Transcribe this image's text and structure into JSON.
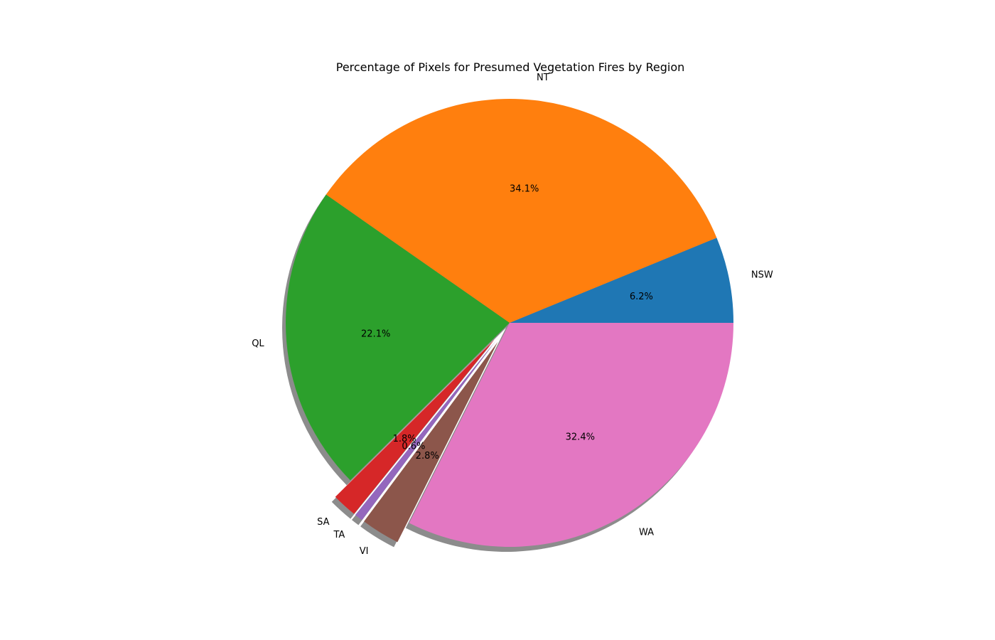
{
  "chart_data": {
    "type": "pie",
    "title": "Percentage of Pixels for Presumed Vegetation Fires by Region",
    "labels": [
      "NSW",
      "NT",
      "QL",
      "SA",
      "TA",
      "VI",
      "WA"
    ],
    "values": [
      6.2,
      34.1,
      22.1,
      1.8,
      0.6,
      2.8,
      32.4
    ],
    "value_labels": [
      "6.2%",
      "34.1%",
      "22.1%",
      "1.8%",
      "0.6%",
      "2.8%",
      "32.4%"
    ],
    "colors": [
      "#1f77b4",
      "#ff7f0e",
      "#2ca02c",
      "#d62728",
      "#9467bd",
      "#8c564b",
      "#e377c2"
    ],
    "exploded": [
      false,
      false,
      false,
      true,
      true,
      true,
      false
    ],
    "shadow": true,
    "start_angle_deg": 0,
    "direction": "counterclockwise"
  }
}
